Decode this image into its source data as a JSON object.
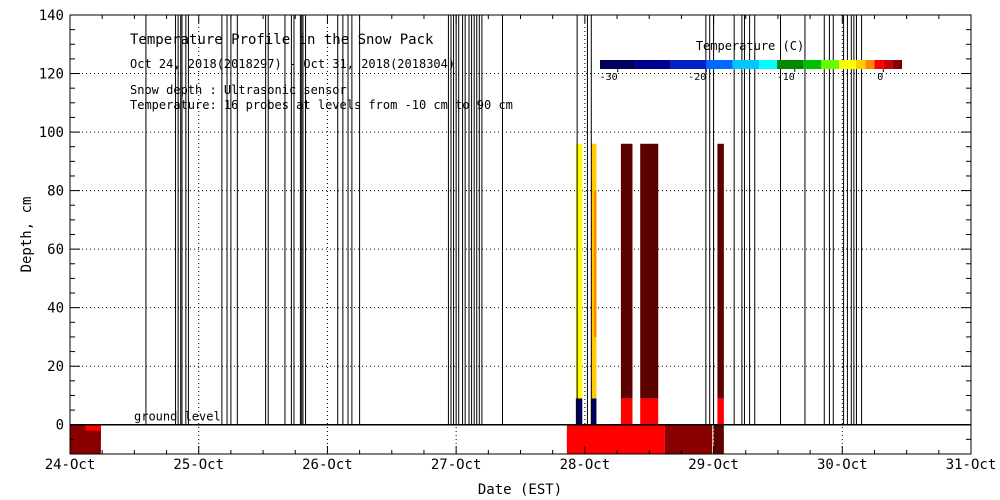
{
  "chart_data": {
    "type": "heatmap",
    "title": "Temperature Profile in the Snow Pack",
    "subtitle": "Oct 24, 2018(2018297) - Oct 31, 2018(2018304)",
    "info_lines": [
      "Snow depth : Ultrasonic sensor",
      "Temperature: 16 probes at levels from -10 cm to 90 cm"
    ],
    "xlabel": "Date (EST)",
    "ylabel": "Depth, cm",
    "x_ticks": [
      "24-Oct",
      "25-Oct",
      "26-Oct",
      "27-Oct",
      "28-Oct",
      "29-Oct",
      "30-Oct",
      "31-Oct"
    ],
    "xlim_days": [
      0,
      7
    ],
    "y_ticks": [
      0,
      20,
      40,
      60,
      80,
      100,
      120,
      140
    ],
    "ylim": [
      -10,
      140
    ],
    "grid": true,
    "ground_level_label": "ground level",
    "colorbar": {
      "title": "Temperature (C)",
      "range": [
        -32,
        2
      ],
      "tick_values": [
        -30,
        -20,
        -10,
        0
      ],
      "tick_labels": [
        "-30",
        "-20",
        "-10",
        "0"
      ],
      "stops": [
        {
          "value": -32,
          "color": "#00005e"
        },
        {
          "value": -28,
          "color": "#000090"
        },
        {
          "value": -24,
          "color": "#0020c8"
        },
        {
          "value": -20,
          "color": "#0068ff"
        },
        {
          "value": -17,
          "color": "#00c8ff"
        },
        {
          "value": -14,
          "color": "#00ffff"
        },
        {
          "value": -12,
          "color": "#008800"
        },
        {
          "value": -9,
          "color": "#00c000"
        },
        {
          "value": -7,
          "color": "#66ff00"
        },
        {
          "value": -5,
          "color": "#ffff00"
        },
        {
          "value": -3,
          "color": "#ffcc00"
        },
        {
          "value": -2,
          "color": "#ff8800"
        },
        {
          "value": -1,
          "color": "#ff0000"
        },
        {
          "value": 0,
          "color": "#cc0000"
        },
        {
          "value": 1,
          "color": "#880000"
        },
        {
          "value": 2,
          "color": "#5c0000"
        }
      ]
    },
    "snow_depth_spikes_days": [
      0.59,
      0.82,
      0.84,
      0.86,
      0.87,
      0.9,
      0.92,
      1.18,
      1.22,
      1.25,
      1.3,
      1.52,
      1.54,
      1.67,
      1.72,
      1.74,
      1.79,
      1.8,
      1.81,
      1.83,
      2.08,
      2.12,
      2.16,
      2.19,
      2.25,
      2.94,
      2.96,
      2.98,
      3.0,
      3.02,
      3.05,
      3.07,
      3.1,
      3.12,
      3.14,
      3.16,
      3.18,
      3.2,
      3.36,
      3.94,
      4.02,
      4.05,
      4.94,
      4.97,
      5.0,
      5.16,
      5.22,
      5.24,
      5.28,
      5.32,
      5.52,
      5.71,
      5.86,
      5.9,
      5.93,
      6.01,
      6.04,
      6.07,
      6.09,
      6.11,
      6.15
    ],
    "temperature_cells": [
      {
        "t0": 0.0,
        "t1": 0.24,
        "d0": -10,
        "d1": 0,
        "temp": 1.5
      },
      {
        "t0": 0.0,
        "t1": 0.24,
        "d0": -5,
        "d1": 0,
        "temp": 1.0
      },
      {
        "t0": 0.12,
        "t1": 0.24,
        "d0": -2,
        "d1": 0,
        "temp": -1
      },
      {
        "t0": 3.86,
        "t1": 4.3,
        "d0": -10,
        "d1": 0,
        "temp": -1
      },
      {
        "t0": 4.3,
        "t1": 4.62,
        "d0": -10,
        "d1": 0,
        "temp": -1
      },
      {
        "t0": 4.62,
        "t1": 4.99,
        "d0": -10,
        "d1": 0,
        "temp": 1.5
      },
      {
        "t0": 5.0,
        "t1": 5.08,
        "d0": -10,
        "d1": 0,
        "temp": 2
      },
      {
        "t0": 3.93,
        "t1": 3.98,
        "d0": 0,
        "d1": 9,
        "temp": -30
      },
      {
        "t0": 3.93,
        "t1": 3.98,
        "d0": 9,
        "d1": 96,
        "temp": -4
      },
      {
        "t0": 4.05,
        "t1": 4.09,
        "d0": 0,
        "d1": 9,
        "temp": -30
      },
      {
        "t0": 4.05,
        "t1": 4.09,
        "d0": 9,
        "d1": 96,
        "temp": -3
      },
      {
        "t0": 4.07,
        "t1": 4.09,
        "d0": 30,
        "d1": 80,
        "temp": -2
      },
      {
        "t0": 4.28,
        "t1": 4.37,
        "d0": 0,
        "d1": 9,
        "temp": -1
      },
      {
        "t0": 4.28,
        "t1": 4.37,
        "d0": 9,
        "d1": 96,
        "temp": 2
      },
      {
        "t0": 4.43,
        "t1": 4.57,
        "d0": 0,
        "d1": 9,
        "temp": -1
      },
      {
        "t0": 4.43,
        "t1": 4.57,
        "d0": 9,
        "d1": 96,
        "temp": 2
      },
      {
        "t0": 5.03,
        "t1": 5.08,
        "d0": 0,
        "d1": 9,
        "temp": -1
      },
      {
        "t0": 5.03,
        "t1": 5.08,
        "d0": 9,
        "d1": 96,
        "temp": 2
      }
    ]
  }
}
